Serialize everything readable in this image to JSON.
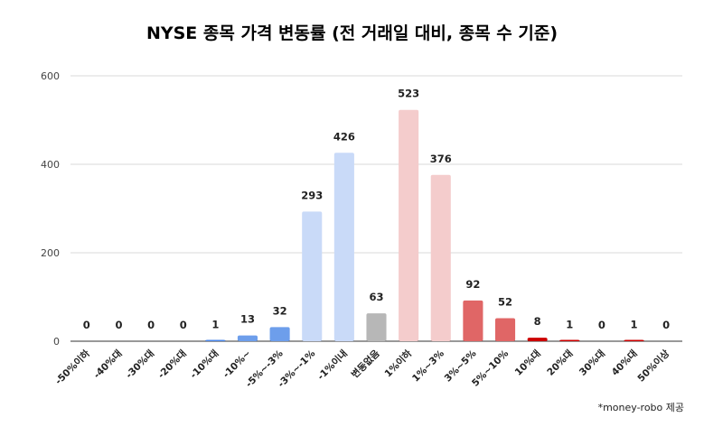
{
  "chart_data": {
    "type": "bar",
    "title": "NYSE 종목 가격 변동률 (전 거래일 대비, 종목 수 기준)",
    "footnote": "*money-robo 제공",
    "xlabel": "",
    "ylabel": "",
    "ylim": [
      0,
      600
    ],
    "yticks": [
      "0",
      "200",
      "400",
      "600"
    ],
    "grid": true,
    "categories": [
      "-50%이하",
      "-40%대",
      "-30%대",
      "-20%대",
      "-10%대",
      "-10%~",
      "-5%~-3%",
      "-3%~-1%",
      "-1%이내",
      "변동없음",
      "1%이하",
      "1%~3%",
      "3%~5%",
      "5%~10%",
      "10%대",
      "20%대",
      "30%대",
      "40%대",
      "50%이상"
    ],
    "values": [
      0,
      0,
      0,
      0,
      1,
      13,
      32,
      293,
      426,
      63,
      523,
      376,
      92,
      52,
      8,
      1,
      0,
      1,
      0
    ],
    "colors": [
      "#4a86e8",
      "#4a86e8",
      "#4a86e8",
      "#4a86e8",
      "#4a86e8",
      "#6d9eeb",
      "#6d9eeb",
      "#c9daf8",
      "#c9daf8",
      "#b7b7b7",
      "#f4cccc",
      "#f4cccc",
      "#e06666",
      "#e06666",
      "#cc0000",
      "#cc0000",
      "#cc0000",
      "#cc0000",
      "#cc0000"
    ]
  }
}
